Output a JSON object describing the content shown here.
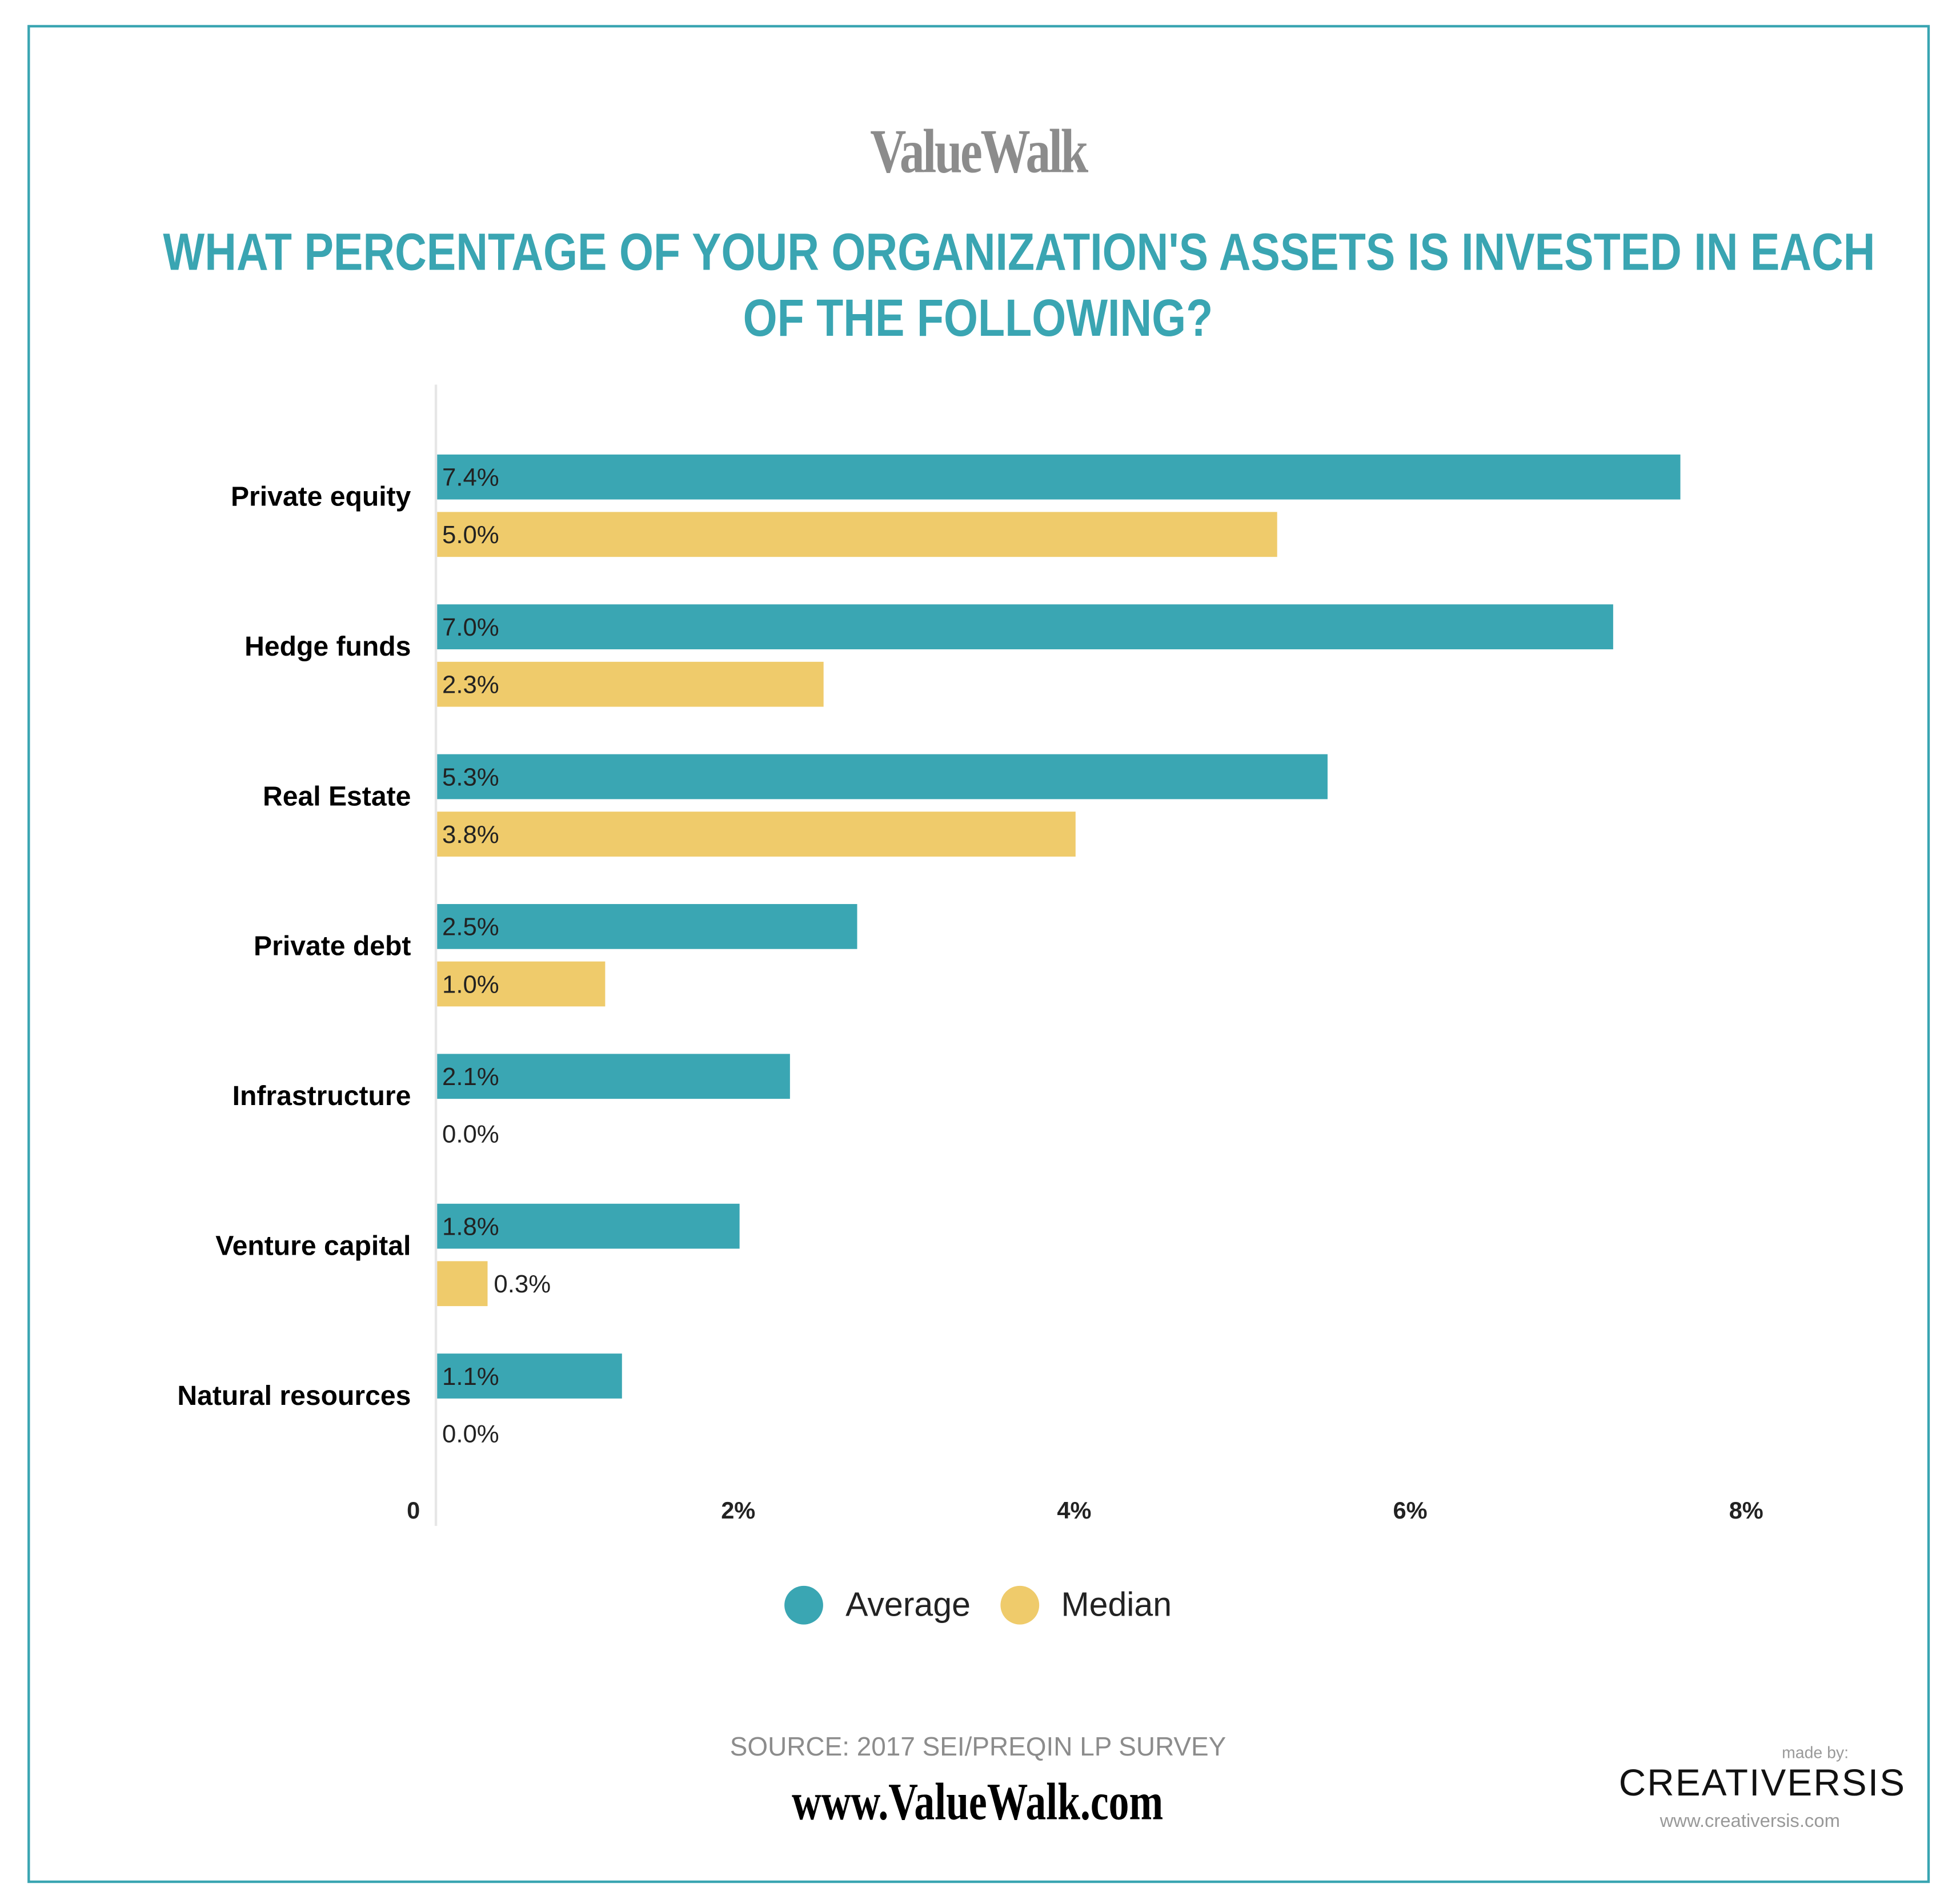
{
  "logo": "ValueWalk",
  "title_lines": [
    "WHAT PERCENTAGE OF YOUR ORGANIZATION'S ASSETS IS INVESTED IN EACH",
    "OF THE FOLLOWING?"
  ],
  "chart_data": {
    "type": "bar",
    "orientation": "horizontal",
    "title": "WHAT PERCENTAGE OF YOUR ORGANIZATION'S ASSETS IS INVESTED IN EACH OF THE FOLLOWING?",
    "categories": [
      "Private equity",
      "Hedge funds",
      "Real Estate",
      "Private debt",
      "Infrastructure",
      "Venture capital",
      "Natural resources"
    ],
    "series": [
      {
        "name": "Average",
        "color": "#3aa6b3",
        "values": [
          7.4,
          7.0,
          5.3,
          2.5,
          2.1,
          1.8,
          1.1
        ],
        "labels": [
          "7.4%",
          "7.0%",
          "5.3%",
          "2.5%",
          "2.1%",
          "1.8%",
          "1.1%"
        ]
      },
      {
        "name": "Median",
        "color": "#efcb6b",
        "values": [
          5.0,
          2.3,
          3.8,
          1.0,
          0.0,
          0.3,
          0.0
        ],
        "labels": [
          "5.0%",
          "2.3%",
          "3.8%",
          "1.0%",
          "0.0%",
          "0.3%",
          "0.0%"
        ]
      }
    ],
    "xlim": [
      0,
      8
    ],
    "xticks": [
      {
        "value": 0,
        "label": "0"
      },
      {
        "value": 2,
        "label": "2%"
      },
      {
        "value": 4,
        "label": "4%"
      },
      {
        "value": 6,
        "label": "6%"
      },
      {
        "value": 8,
        "label": "8%"
      }
    ],
    "grid": false,
    "legend": "bottom"
  },
  "source": "SOURCE: 2017 SEI/PREQIN LP SURVEY",
  "site": "www.ValueWalk.com",
  "credit": {
    "made_by": "made by:",
    "name": "CREATIVERSIS",
    "url": "www.creativersis.com"
  },
  "colors": {
    "accent": "#3aa5b2",
    "average": "#3aa6b3",
    "median": "#efcb6b"
  }
}
